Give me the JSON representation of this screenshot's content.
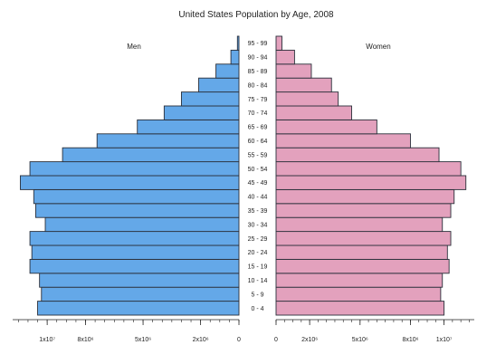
{
  "chart_data": {
    "type": "bar",
    "orientation": "horizontal",
    "layout": "population-pyramid",
    "title": "United States Population by Age, 2008",
    "categories": [
      "0 - 4",
      "5 - 9",
      "10 - 14",
      "15 - 19",
      "20 - 24",
      "25 - 29",
      "30 - 34",
      "35 - 39",
      "40 - 44",
      "45 - 49",
      "50 - 54",
      "55 - 59",
      "60 - 64",
      "65 - 69",
      "70 - 74",
      "75 - 79",
      "80 - 84",
      "85 - 89",
      "90 - 94",
      "95 - 99"
    ],
    "series": [
      {
        "name": "Men",
        "color": "#64a8e8",
        "values": [
          10500000,
          10300000,
          10400000,
          10900000,
          10800000,
          10900000,
          10100000,
          10600000,
          10700000,
          11400000,
          10900000,
          9200000,
          7400000,
          5300000,
          3900000,
          3000000,
          2100000,
          1200000,
          420000,
          80000
        ]
      },
      {
        "name": "Women",
        "color": "#e3a1bd",
        "values": [
          10000000,
          9800000,
          9900000,
          10300000,
          10200000,
          10400000,
          9900000,
          10400000,
          10600000,
          11300000,
          11000000,
          9700000,
          8000000,
          6000000,
          4500000,
          3700000,
          3300000,
          2100000,
          1100000,
          350000
        ]
      }
    ],
    "xaxis": {
      "left_ticks": [
        {
          "value": 10000000,
          "label": "1x10⁷"
        },
        {
          "value": 8000000,
          "label": "8x10⁶"
        },
        {
          "value": 5000000,
          "label": "5x10⁶"
        },
        {
          "value": 2000000,
          "label": "2x10⁶"
        },
        {
          "value": 0,
          "label": "0"
        }
      ],
      "right_ticks": [
        {
          "value": 0,
          "label": "0"
        },
        {
          "value": 2000000,
          "label": "2x10⁶"
        },
        {
          "value": 5000000,
          "label": "5x10⁶"
        },
        {
          "value": 8000000,
          "label": "8x10⁶"
        },
        {
          "value": 10000000,
          "label": "1x10⁷"
        }
      ],
      "range": [
        0,
        11800000
      ],
      "minor_step": 500000
    },
    "grid": false,
    "legend": "none"
  }
}
